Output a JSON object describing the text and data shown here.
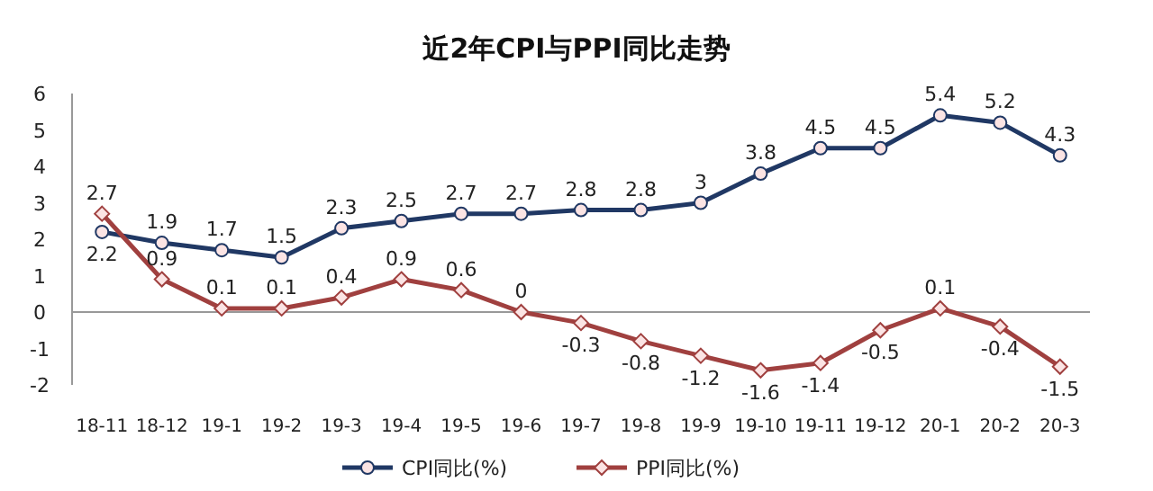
{
  "chart_data": {
    "type": "line",
    "title": "近2年CPI与PPI同比走势",
    "categories": [
      "18-11",
      "18-12",
      "19-1",
      "19-2",
      "19-3",
      "19-4",
      "19-5",
      "19-6",
      "19-7",
      "19-8",
      "19-9",
      "19-10",
      "19-11",
      "19-12",
      "20-1",
      "20-2",
      "20-3"
    ],
    "series": [
      {
        "name": "CPI同比(%)",
        "color": "#203864",
        "marker": "circle",
        "values": [
          2.2,
          1.9,
          1.7,
          1.5,
          2.3,
          2.5,
          2.7,
          2.7,
          2.8,
          2.8,
          3,
          3.8,
          4.5,
          4.5,
          5.4,
          5.2,
          4.3
        ]
      },
      {
        "name": "PPI同比(%)",
        "color": "#a0403f",
        "marker": "diamond",
        "values": [
          2.7,
          0.9,
          0.1,
          0.1,
          0.4,
          0.9,
          0.6,
          0,
          -0.3,
          -0.8,
          -1.2,
          -1.6,
          -1.4,
          -0.5,
          0.1,
          -0.4,
          -1.5
        ]
      }
    ],
    "ylim": [
      -2,
      6
    ],
    "yticks": [
      -2,
      -1,
      0,
      1,
      2,
      3,
      4,
      5,
      6
    ],
    "legend": "bottom",
    "data_labels": true
  }
}
